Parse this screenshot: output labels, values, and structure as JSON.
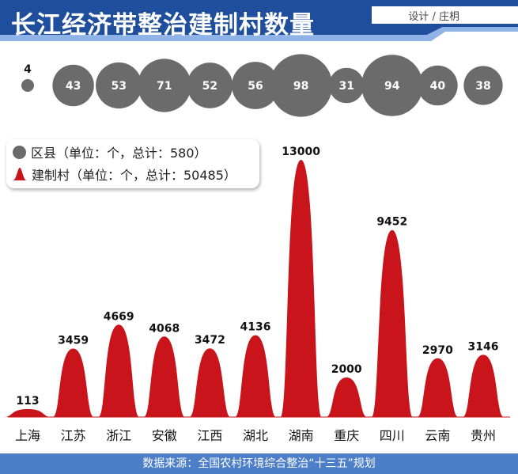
{
  "header": {
    "title": "长江经济带整治建制村数量",
    "designer": "设计 / 庄枂"
  },
  "legend": {
    "items": [
      {
        "label": "区县（单位：个，总计：580）",
        "color": "#6b6b6b",
        "icon": "circle-icon"
      },
      {
        "label": "建制村（单位：个，总计：50485）",
        "color": "#c8141a",
        "icon": "bell-curve-icon"
      }
    ]
  },
  "footer": {
    "source": "数据来源：全国农村环境综合整治“十三五”规划"
  },
  "colors": {
    "header_blue": "#1f4f9c",
    "footer_blue": "#4d7ec8",
    "bar_red": "#c8141a",
    "circle_grey": "#6b6b6b"
  },
  "chart_data": {
    "type": "bar",
    "categories": [
      "上海",
      "江苏",
      "浙江",
      "安徽",
      "江西",
      "湖北",
      "湖南",
      "重庆",
      "四川",
      "云南",
      "贵州"
    ],
    "series": [
      {
        "name": "建制村",
        "values": [
          113,
          3459,
          4669,
          4068,
          3472,
          4136,
          13000,
          2000,
          9452,
          2970,
          3146
        ]
      },
      {
        "name": "区县",
        "values": [
          4,
          43,
          53,
          71,
          52,
          56,
          98,
          31,
          94,
          40,
          38
        ]
      }
    ],
    "ylim": [
      0,
      13000
    ]
  }
}
